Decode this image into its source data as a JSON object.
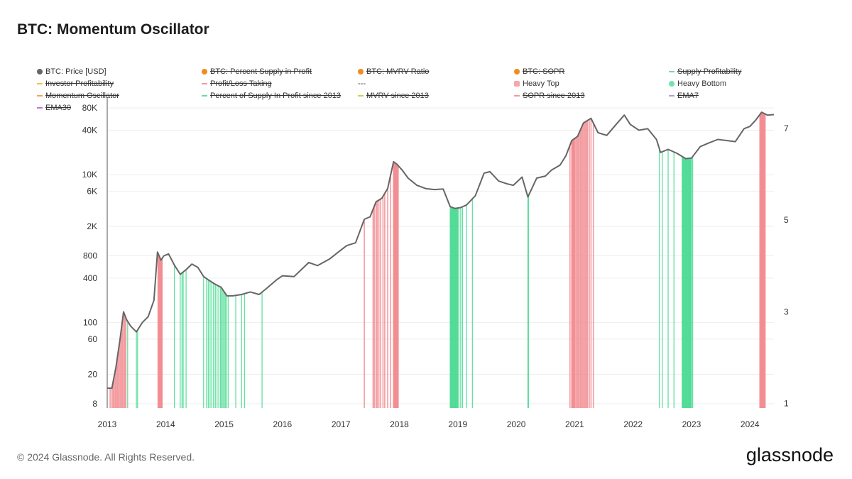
{
  "title": "BTC: Momentum Oscillator",
  "footer": "© 2024 Glassnode. All Rights Reserved.",
  "logo": "glassnode",
  "legend": [
    {
      "label": "BTC: Price [USD]",
      "swatch": "dot",
      "color": "#666666",
      "strike": false
    },
    {
      "label": "BTC: Percent Supply in Profit",
      "swatch": "dot",
      "color": "#f08c1e",
      "strike": true
    },
    {
      "label": "BTC: MVRV Ratio",
      "swatch": "dot",
      "color": "#f08c1e",
      "strike": true
    },
    {
      "label": "BTC: SOPR",
      "swatch": "dot",
      "color": "#f08c1e",
      "strike": true
    },
    {
      "label": "Supply Profitability",
      "swatch": "line",
      "color": "#6ddc9c",
      "strike": true
    },
    {
      "label": "Investor Profitability",
      "swatch": "line",
      "color": "#f0c24a",
      "strike": true
    },
    {
      "label": "Profit/Loss Taking",
      "swatch": "line",
      "color": "#f59a9a",
      "strike": true
    },
    {
      "label": "---",
      "swatch": "none",
      "color": "#333333",
      "strike": false
    },
    {
      "label": "Heavy Top",
      "swatch": "square",
      "color": "#f7a6aa",
      "strike": false
    },
    {
      "label": "Heavy Bottom",
      "swatch": "dot",
      "color": "#74e2b0",
      "strike": false
    },
    {
      "label": "Momentum Oscillator",
      "swatch": "line",
      "color": "#f5a25a",
      "strike": true
    },
    {
      "label": "Percent of Supply In Profit since 2013",
      "swatch": "line",
      "color": "#6ddc9c",
      "strike": true
    },
    {
      "label": "MVRV since 2013",
      "swatch": "line",
      "color": "#c9d24a",
      "strike": true
    },
    {
      "label": "SOPR since 2013",
      "swatch": "line",
      "color": "#f59a9a",
      "strike": true
    },
    {
      "label": "EMA7",
      "swatch": "line",
      "color": "#b59ae6",
      "strike": true
    },
    {
      "label": "EMA30",
      "swatch": "line",
      "color": "#c07ad6",
      "strike": true
    }
  ],
  "chart_data": {
    "type": "line",
    "title": "BTC: Momentum Oscillator",
    "y_left_scale": "log",
    "y_left_range": [
      7,
      100000
    ],
    "y_left_ticks": [
      8,
      20,
      60,
      100,
      400,
      800,
      2000,
      6000,
      10000,
      40000,
      80000
    ],
    "y_left_tick_labels": [
      "8",
      "20",
      "60",
      "100",
      "400",
      "800",
      "2K",
      "6K",
      "10K",
      "40K",
      "80K"
    ],
    "y_right_range": [
      0.9,
      7.6
    ],
    "y_right_ticks": [
      1,
      3,
      5,
      7
    ],
    "x_range": [
      2013.0,
      2024.41
    ],
    "x_ticks": [
      2013,
      2014,
      2015,
      2016,
      2017,
      2018,
      2019,
      2020,
      2021,
      2022,
      2023,
      2024
    ],
    "x_tick_labels": [
      "2013",
      "2014",
      "2015",
      "2016",
      "2017",
      "2018",
      "2019",
      "2020",
      "2021",
      "2022",
      "2023",
      "2024"
    ],
    "price_series": {
      "name": "BTC: Price [USD]",
      "color": "#666666",
      "x": [
        2013.0,
        2013.08,
        2013.15,
        2013.22,
        2013.28,
        2013.33,
        2013.4,
        2013.5,
        2013.6,
        2013.7,
        2013.8,
        2013.86,
        2013.92,
        2013.97,
        2014.05,
        2014.15,
        2014.25,
        2014.35,
        2014.45,
        2014.55,
        2014.65,
        2014.75,
        2014.85,
        2014.95,
        2015.05,
        2015.15,
        2015.3,
        2015.45,
        2015.6,
        2015.75,
        2015.9,
        2016.0,
        2016.2,
        2016.45,
        2016.6,
        2016.8,
        2017.0,
        2017.1,
        2017.25,
        2017.4,
        2017.5,
        2017.6,
        2017.7,
        2017.8,
        2017.9,
        2017.96,
        2018.05,
        2018.15,
        2018.3,
        2018.45,
        2018.6,
        2018.75,
        2018.87,
        2018.95,
        2019.05,
        2019.15,
        2019.3,
        2019.45,
        2019.55,
        2019.7,
        2019.85,
        2019.95,
        2020.1,
        2020.2,
        2020.35,
        2020.5,
        2020.6,
        2020.75,
        2020.85,
        2020.95,
        2021.05,
        2021.15,
        2021.28,
        2021.4,
        2021.55,
        2021.7,
        2021.85,
        2021.95,
        2022.1,
        2022.25,
        2022.4,
        2022.47,
        2022.6,
        2022.75,
        2022.9,
        2023.0,
        2023.15,
        2023.3,
        2023.45,
        2023.6,
        2023.75,
        2023.9,
        2024.0,
        2024.1,
        2024.2,
        2024.3,
        2024.41
      ],
      "y": [
        13,
        13,
        25,
        60,
        140,
        110,
        90,
        75,
        100,
        120,
        200,
        900,
        700,
        800,
        850,
        600,
        450,
        520,
        620,
        560,
        420,
        370,
        330,
        300,
        230,
        230,
        240,
        260,
        240,
        300,
        380,
        430,
        420,
        650,
        590,
        720,
        960,
        1100,
        1200,
        2500,
        2700,
        4300,
        4800,
        6500,
        15000,
        13800,
        11500,
        9000,
        7200,
        6500,
        6300,
        6400,
        3700,
        3500,
        3600,
        3900,
        5200,
        10500,
        11000,
        8200,
        7500,
        7200,
        9300,
        5000,
        9000,
        9600,
        11500,
        13500,
        18000,
        29000,
        33000,
        50000,
        58000,
        37000,
        34000,
        47000,
        64000,
        48000,
        40000,
        42000,
        30000,
        20000,
        22000,
        19500,
        16500,
        16800,
        24000,
        27000,
        30000,
        29000,
        28000,
        42000,
        45000,
        55000,
        70000,
        64000,
        65000
      ]
    },
    "heavy_top_years": [
      2013.05,
      2013.08,
      2013.1,
      2013.12,
      2013.14,
      2013.16,
      2013.18,
      2013.2,
      2013.22,
      2013.24,
      2013.26,
      2013.28,
      2013.3,
      2013.32,
      2013.87,
      2013.88,
      2013.89,
      2013.9,
      2013.91,
      2013.92,
      2013.93,
      2013.94,
      2017.4,
      2017.55,
      2017.57,
      2017.6,
      2017.62,
      2017.65,
      2017.68,
      2017.72,
      2017.75,
      2017.8,
      2017.85,
      2017.9,
      2017.91,
      2017.92,
      2017.93,
      2017.94,
      2017.95,
      2017.96,
      2017.97,
      2017.98,
      2020.92,
      2020.95,
      2020.96,
      2020.97,
      2020.98,
      2020.99,
      2021.0,
      2021.02,
      2021.04,
      2021.06,
      2021.08,
      2021.1,
      2021.12,
      2021.14,
      2021.16,
      2021.18,
      2021.2,
      2021.22,
      2021.25,
      2021.28,
      2021.32,
      2024.17,
      2024.18,
      2024.19,
      2024.2,
      2024.21,
      2024.22,
      2024.23,
      2024.24,
      2024.25,
      2024.26
    ],
    "heavy_bottom_years": [
      2013.35,
      2013.5,
      2013.52,
      2014.15,
      2014.25,
      2014.28,
      2014.3,
      2014.35,
      2014.65,
      2014.7,
      2014.73,
      2014.76,
      2014.79,
      2014.82,
      2014.85,
      2014.88,
      2014.91,
      2014.94,
      2014.96,
      2014.98,
      2015.0,
      2015.02,
      2015.04,
      2015.07,
      2015.2,
      2015.3,
      2015.35,
      2015.65,
      2018.87,
      2018.88,
      2018.89,
      2018.9,
      2018.91,
      2018.92,
      2018.93,
      2018.94,
      2018.95,
      2018.96,
      2018.97,
      2018.98,
      2018.99,
      2019.0,
      2019.02,
      2019.05,
      2019.08,
      2019.15,
      2019.25,
      2020.2,
      2020.21,
      2022.45,
      2022.5,
      2022.6,
      2022.7,
      2022.84,
      2022.85,
      2022.86,
      2022.87,
      2022.88,
      2022.89,
      2022.9,
      2022.91,
      2022.92,
      2022.93,
      2022.94,
      2022.95,
      2022.96,
      2022.97,
      2022.98,
      2022.99,
      2023.0,
      2023.02
    ]
  }
}
